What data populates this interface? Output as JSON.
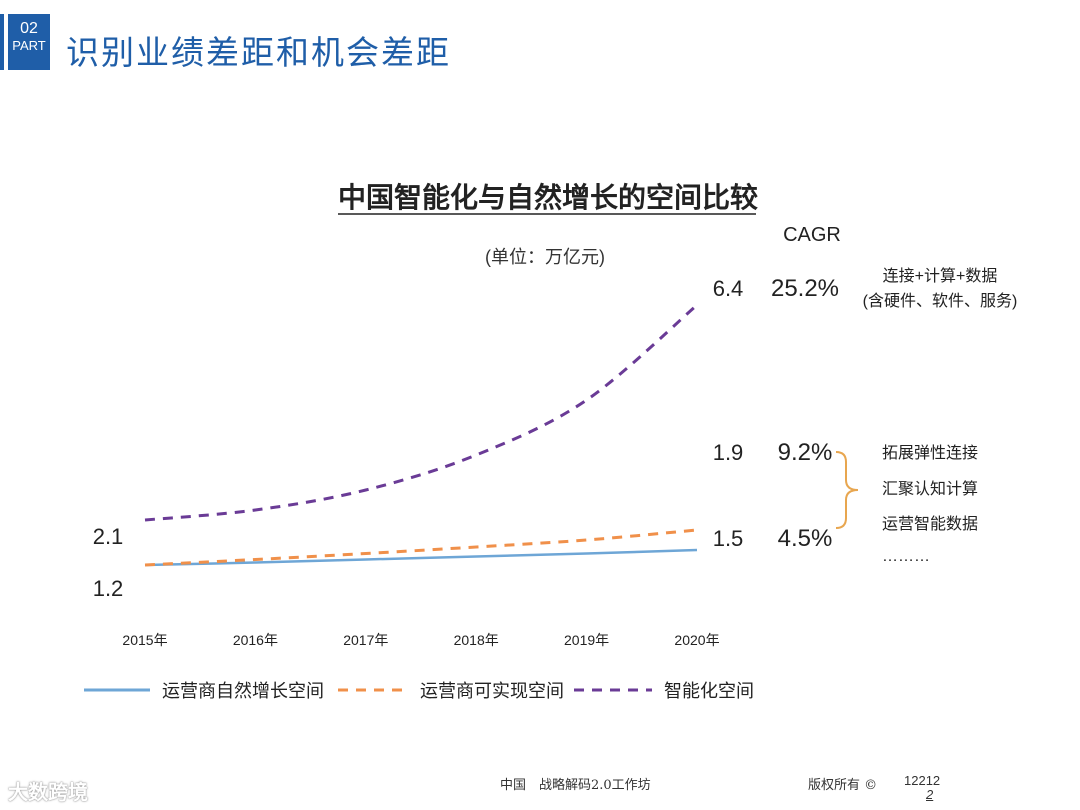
{
  "header": {
    "part_number": "02",
    "part_label": "PART",
    "title": "识别业绩差距和机会差距"
  },
  "colors": {
    "brand": "#1f5ea8",
    "natural": "#6ea6d6",
    "achievable": "#f0904a",
    "smart": "#6a3b96"
  },
  "chart_data": {
    "type": "line",
    "title": "中国智能化与自然增长的空间比较",
    "unit_label": "(单位：万亿元)",
    "cagr_header": "CAGR",
    "categories": [
      "2015年",
      "2016年",
      "2017年",
      "2018年",
      "2019年",
      "2020年"
    ],
    "series": [
      {
        "name": "运营商自然增长空间",
        "style": "solid",
        "color": "#6ea6d6",
        "values": [
          1.2,
          1.25,
          1.31,
          1.37,
          1.43,
          1.5
        ],
        "start_label": "1.2",
        "end_label": "1.5",
        "cagr": "4.5%"
      },
      {
        "name": "运营商可实现空间",
        "style": "dashed",
        "color": "#f0904a",
        "values": [
          1.2,
          1.31,
          1.43,
          1.56,
          1.7,
          1.9
        ],
        "end_label": "1.9",
        "cagr": "9.2%"
      },
      {
        "name": "智能化空间",
        "style": "dashed",
        "color": "#6a3b96",
        "values": [
          2.1,
          2.3,
          2.7,
          3.4,
          4.5,
          6.4
        ],
        "start_label": "2.1",
        "end_label": "6.4",
        "cagr": "25.2%"
      }
    ],
    "annotations": {
      "smart": [
        "连接+计算+数据",
        "(含硬件、软件、服务)"
      ],
      "bracket_items": [
        "拓展弹性连接",
        "汇聚认知计算",
        "运营智能数据",
        "………"
      ]
    },
    "ylim": [
      0,
      7
    ]
  },
  "footer": {
    "center": "中国　战略解码2.0工作坊",
    "copyright": "版权所有 ©",
    "page_a": "12212",
    "page_b": "2",
    "watermark": "大数跨境"
  }
}
